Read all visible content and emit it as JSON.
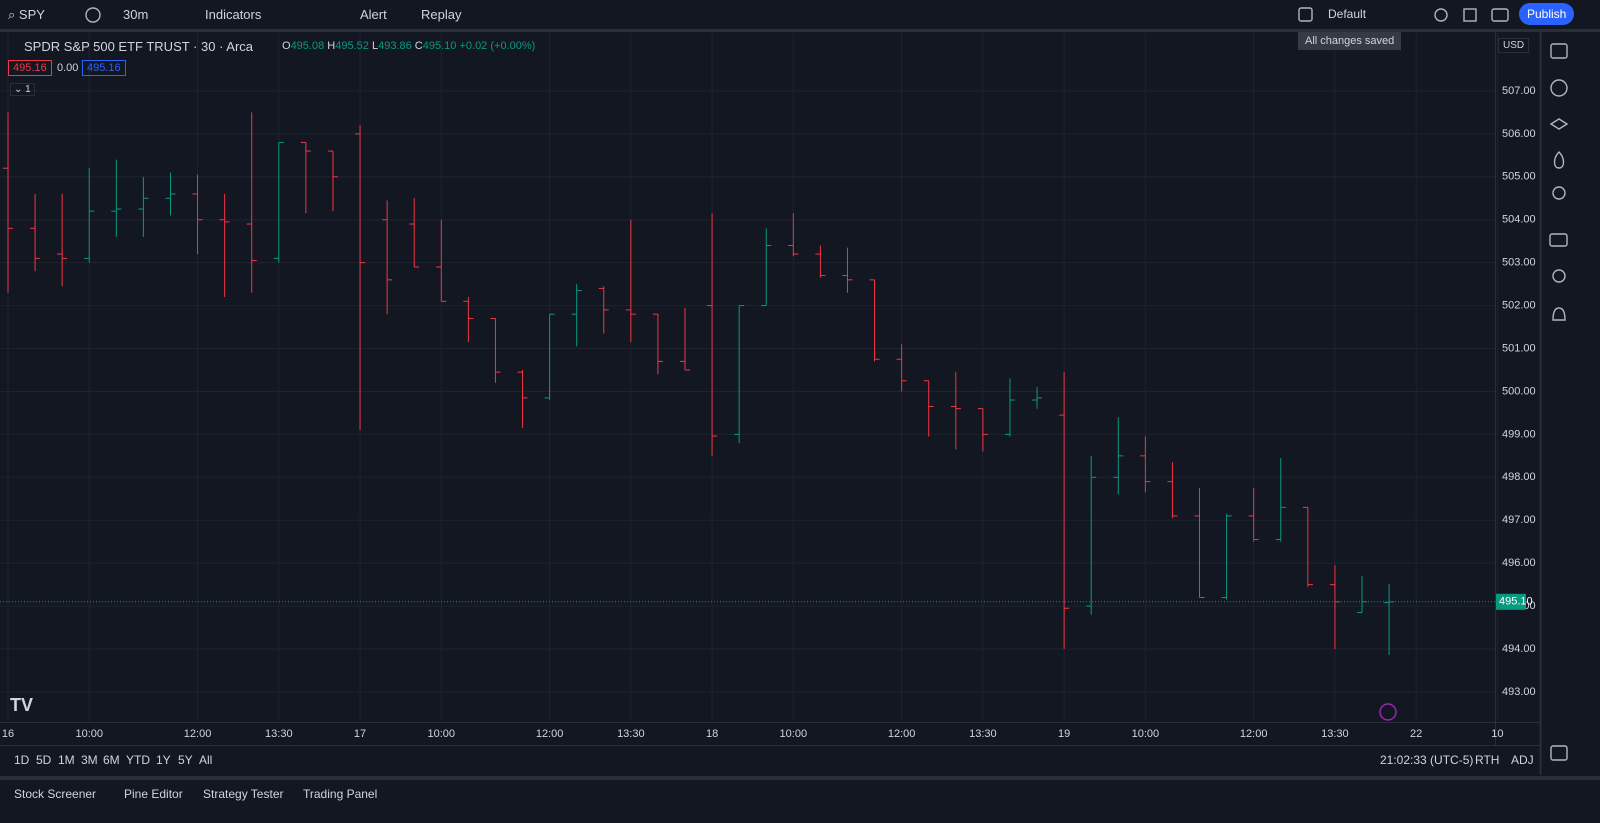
{
  "toolbar": {
    "symbol": "SPY",
    "interval": "30m",
    "indicators": "Indicators",
    "alert": "Alert",
    "replay": "Replay",
    "layout": "Default",
    "publish": "Publish",
    "tooltip": "All changes saved"
  },
  "legend": {
    "title": "SPDR S&P 500 ETF TRUST · 30 · Arca",
    "open_label": "O",
    "open": "495.08",
    "high_label": "H",
    "high": "495.52",
    "low_label": "L",
    "low": "493.86",
    "close_label": "C",
    "close": "495.10",
    "change": "+0.02 (+0.00%)",
    "bid": "495.16",
    "spread": "0.00",
    "ask": "495.16",
    "collapse": "1"
  },
  "currency": "USD",
  "chart_data": {
    "type": "ohlc",
    "categories": [
      "16",
      null,
      null,
      "10:00",
      null,
      null,
      null,
      "12:00",
      null,
      null,
      "13:30",
      null,
      null,
      "17",
      null,
      null,
      "10:00",
      null,
      null,
      null,
      "12:00",
      null,
      null,
      "13:30",
      null,
      null,
      "18",
      null,
      null,
      "10:00",
      null,
      null,
      null,
      "12:00",
      null,
      null,
      "13:30",
      null,
      null,
      "19",
      null,
      null,
      "10:00",
      null,
      null,
      null,
      "12:00",
      null,
      null,
      "13:30",
      null,
      null,
      "22",
      null,
      null,
      "10"
    ],
    "open": [
      505.2,
      503.8,
      503.2,
      503.1,
      504.2,
      504.25,
      504.5,
      504.6,
      504.0,
      503.9,
      503.1,
      505.8,
      505.6,
      506.0,
      504.0,
      503.9,
      502.9,
      502.1,
      501.7,
      500.45,
      499.85,
      501.8,
      502.4,
      501.9,
      501.8,
      500.7,
      502.0,
      499.0,
      502.0,
      503.4,
      503.2,
      502.7,
      502.6,
      500.75,
      500.25,
      499.65,
      499.6,
      499.0,
      499.8,
      499.45,
      495.0,
      498.0,
      498.5,
      497.9,
      497.1,
      495.2,
      497.1,
      496.55,
      497.3,
      495.5,
      494.85,
      495.08,
      null,
      null,
      null,
      null
    ],
    "high": [
      506.5,
      504.6,
      504.6,
      505.2,
      505.4,
      505.0,
      505.1,
      505.05,
      504.6,
      506.5,
      505.8,
      505.8,
      505.6,
      506.2,
      504.45,
      504.5,
      504.0,
      502.2,
      501.7,
      500.5,
      501.8,
      502.5,
      502.45,
      504.0,
      501.8,
      501.95,
      504.15,
      502.0,
      503.8,
      504.15,
      503.4,
      503.35,
      502.6,
      501.1,
      500.25,
      500.45,
      499.6,
      500.3,
      500.1,
      500.45,
      498.5,
      499.4,
      498.95,
      498.35,
      497.75,
      497.15,
      497.75,
      498.45,
      497.3,
      495.95,
      495.7,
      495.52,
      null,
      null,
      null,
      null
    ],
    "low": [
      502.3,
      502.8,
      502.45,
      503.0,
      503.6,
      503.6,
      504.1,
      503.2,
      502.2,
      502.3,
      503.0,
      504.15,
      504.2,
      499.1,
      501.8,
      502.9,
      502.1,
      501.15,
      500.2,
      499.15,
      499.8,
      501.05,
      501.35,
      501.15,
      500.4,
      500.5,
      498.5,
      498.8,
      502.0,
      503.15,
      502.65,
      502.3,
      500.7,
      500.0,
      498.95,
      498.65,
      498.6,
      498.95,
      499.6,
      494.0,
      494.8,
      497.6,
      497.65,
      497.05,
      495.2,
      495.15,
      496.5,
      496.5,
      495.45,
      494.0,
      494.85,
      493.86,
      null,
      null,
      null,
      null
    ],
    "close": [
      503.8,
      503.1,
      503.1,
      504.2,
      504.25,
      504.5,
      504.6,
      504.0,
      503.95,
      503.05,
      505.8,
      505.6,
      505.0,
      503.0,
      502.6,
      502.9,
      502.1,
      501.7,
      500.45,
      499.85,
      501.8,
      502.35,
      501.9,
      501.8,
      500.7,
      500.5,
      498.96,
      502.0,
      503.4,
      503.2,
      502.7,
      502.6,
      500.75,
      500.25,
      499.65,
      499.6,
      499.0,
      499.8,
      499.85,
      494.95,
      498.0,
      498.5,
      497.9,
      497.1,
      495.2,
      497.1,
      496.55,
      497.3,
      495.5,
      495.1,
      495.1,
      495.1,
      null,
      null,
      null,
      null
    ],
    "up_color": "#089981",
    "down_color": "#f23645",
    "ylim": [
      492.3,
      508.35
    ],
    "yticks": [
      {
        "value": 493,
        "label": "493.00"
      },
      {
        "value": 494,
        "label": "494.00"
      },
      {
        "value": 495,
        "label": "495.00"
      },
      {
        "value": 496,
        "label": "496.00"
      },
      {
        "value": 497,
        "label": "497.00"
      },
      {
        "value": 498,
        "label": "498.00"
      },
      {
        "value": 499,
        "label": "499.00"
      },
      {
        "value": 500,
        "label": "500.00"
      },
      {
        "value": 501,
        "label": "501.00"
      },
      {
        "value": 502,
        "label": "502.00"
      },
      {
        "value": 503,
        "label": "503.00"
      },
      {
        "value": 504,
        "label": "504.00"
      },
      {
        "value": 505,
        "label": "505.00"
      },
      {
        "value": 506,
        "label": "506.00"
      },
      {
        "value": 507,
        "label": "507.00"
      }
    ],
    "last_price": {
      "value": 495.1,
      "label": "495.10"
    },
    "grid": true
  },
  "bottom_bar": {
    "ranges": [
      "1D",
      "5D",
      "1M",
      "3M",
      "6M",
      "YTD",
      "1Y",
      "5Y",
      "All"
    ],
    "clock": "21:02:33 (UTC-5)",
    "session": "RTH",
    "adjust": "ADJ"
  },
  "panels": [
    "Stock Screener",
    "Pine Editor",
    "Strategy Tester",
    "Trading Panel"
  ]
}
